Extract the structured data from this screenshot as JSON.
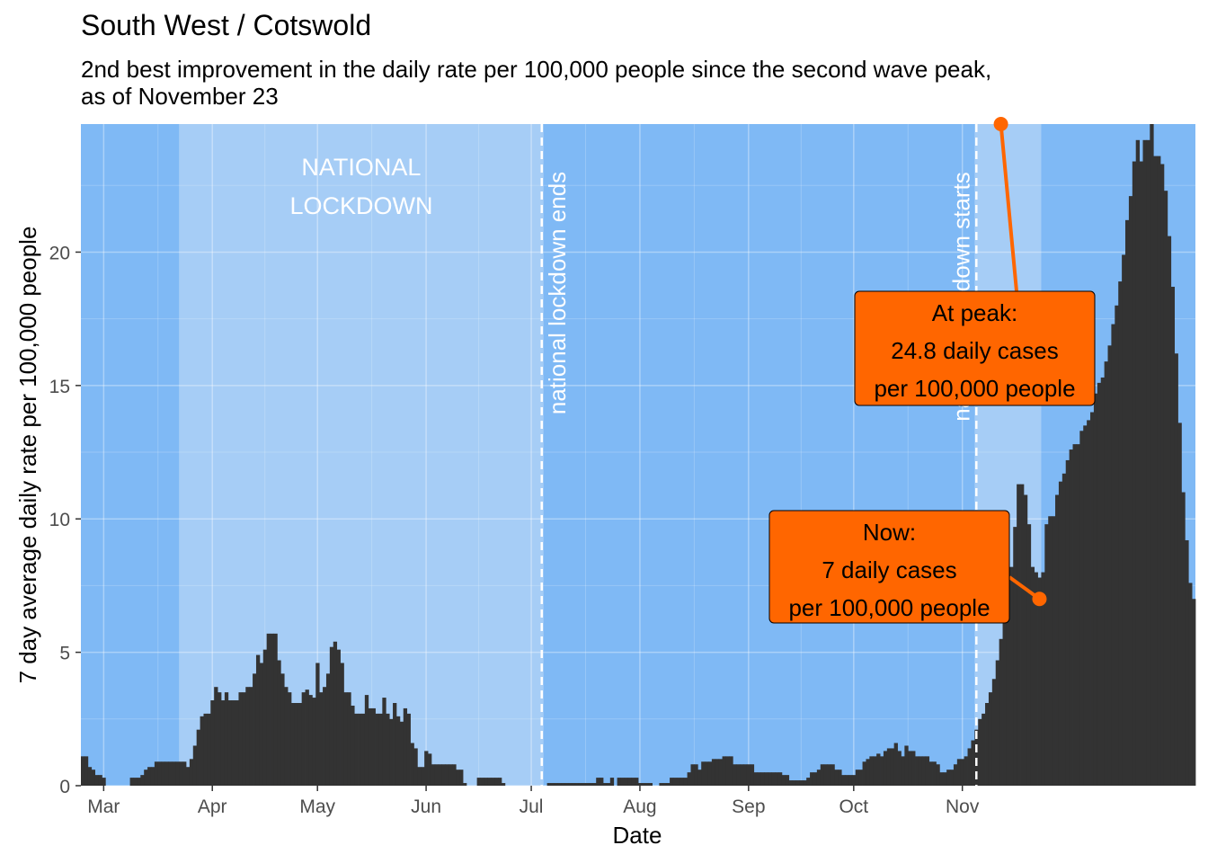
{
  "title": "South West / Cotswold",
  "subtitle_line1": "2nd best improvement in the daily rate per 100,000 people since the second wave peak,",
  "subtitle_line2": "as of November 23",
  "colors": {
    "panel_background": "#7fb9f5",
    "lockdown_shade": "#a6cdf6",
    "bars": "#333333",
    "annotation_fill": "#ff6600",
    "annotation_line": "#ff6600"
  },
  "chart_data": {
    "type": "bar",
    "xlabel": "Date",
    "ylabel": "7 day average daily rate per 100,000 people",
    "x_start_date": "2020-02-24",
    "x_range": [
      "2020-02-24",
      "2020-11-23"
    ],
    "ylim": [
      0,
      24.8
    ],
    "yticks": [
      0,
      5,
      10,
      15,
      20
    ],
    "xticks": [
      {
        "label": "Mar",
        "date": "2020-03-01"
      },
      {
        "label": "Apr",
        "date": "2020-04-01"
      },
      {
        "label": "May",
        "date": "2020-05-01"
      },
      {
        "label": "Jun",
        "date": "2020-06-01"
      },
      {
        "label": "Jul",
        "date": "2020-07-01"
      },
      {
        "label": "Aug",
        "date": "2020-08-01"
      },
      {
        "label": "Sep",
        "date": "2020-09-01"
      },
      {
        "label": "Oct",
        "date": "2020-10-01"
      },
      {
        "label": "Nov",
        "date": "2020-11-01"
      }
    ],
    "grid": true,
    "shaded_regions": [
      {
        "label_line1": "NATIONAL",
        "label_line2": "LOCKDOWN",
        "start": "2020-03-23",
        "end": "2020-07-04"
      },
      {
        "start": "2020-11-05",
        "end": "2020-11-23"
      }
    ],
    "vlines": [
      {
        "label": "national lockdown ends",
        "date": "2020-07-04"
      },
      {
        "label": "national lockdown starts",
        "date": "2020-11-05"
      }
    ],
    "annotations": [
      {
        "line1": "At peak:",
        "line2": "24.8 daily cases",
        "line3": "per 100,000 people",
        "date": "2020-11-12",
        "value": 24.8
      },
      {
        "line1": "Now:",
        "line2": "7 daily cases",
        "line3": "per 100,000 people",
        "date": "2020-11-23",
        "value": 7
      }
    ],
    "values": [
      1.1,
      1.1,
      0.7,
      0.6,
      0.4,
      0.4,
      0.3,
      0,
      0,
      0,
      0,
      0,
      0,
      0,
      0.3,
      0.3,
      0.3,
      0.4,
      0.6,
      0.7,
      0.7,
      0.9,
      0.9,
      0.9,
      0.9,
      0.9,
      0.9,
      0.9,
      0.9,
      0.9,
      0.7,
      1.0,
      1.5,
      2.1,
      2.6,
      2.7,
      2.7,
      3.2,
      3.7,
      3.5,
      3.2,
      3.5,
      3.2,
      3.2,
      3.2,
      3.5,
      3.5,
      3.7,
      3.7,
      4.2,
      4.9,
      4.6,
      5.1,
      5.7,
      5.7,
      5.7,
      4.7,
      4.2,
      3.7,
      3.5,
      3.1,
      3.1,
      3.1,
      3.5,
      3.6,
      3.4,
      3.3,
      4.6,
      3.5,
      3.7,
      4.2,
      5.2,
      5.4,
      5.1,
      4.6,
      3.5,
      3.5,
      3.0,
      2.7,
      2.7,
      2.7,
      3.4,
      2.9,
      2.9,
      2.7,
      2.7,
      3.3,
      2.7,
      2.5,
      3.1,
      2.6,
      2.4,
      2.9,
      2.7,
      1.6,
      1.4,
      0.7,
      0.7,
      1.3,
      1.2,
      0.8,
      0.8,
      0.8,
      0.8,
      0.8,
      0.8,
      0.8,
      0.6,
      0.6,
      0.1,
      0,
      0,
      0,
      0.3,
      0.3,
      0.3,
      0.3,
      0.3,
      0.3,
      0.3,
      0.1,
      0,
      0,
      0,
      0,
      0,
      0,
      0,
      0,
      0,
      0,
      0,
      0,
      0.1,
      0.1,
      0.1,
      0.1,
      0.1,
      0.1,
      0.1,
      0.1,
      0.1,
      0.1,
      0.1,
      0.1,
      0.1,
      0.1,
      0.3,
      0.3,
      0.1,
      0.1,
      0.3,
      0,
      0.3,
      0.3,
      0.3,
      0.3,
      0.3,
      0.3,
      0.1,
      0.1,
      0.1,
      0.1,
      0,
      0,
      0.1,
      0.1,
      0.1,
      0.3,
      0.3,
      0.3,
      0.3,
      0.3,
      0.5,
      0.8,
      0.8,
      0.6,
      0.9,
      0.9,
      0.9,
      1.0,
      1.0,
      1.0,
      1.1,
      1.1,
      1.1,
      0.8,
      0.8,
      0.8,
      0.8,
      0.8,
      0.8,
      0.5,
      0.5,
      0.5,
      0.5,
      0.5,
      0.5,
      0.5,
      0.5,
      0.4,
      0.4,
      0.2,
      0.2,
      0.2,
      0.2,
      0.2,
      0.3,
      0.5,
      0.5,
      0.6,
      0.8,
      0.8,
      0.8,
      0.8,
      0.6,
      0.6,
      0.4,
      0.4,
      0.4,
      0.4,
      0.6,
      0.6,
      0.9,
      1.0,
      1.1,
      1.1,
      1.2,
      1.1,
      1.3,
      1.4,
      1.4,
      1.6,
      1.3,
      1.1,
      1.5,
      1.3,
      1.3,
      1.1,
      1.1,
      1.1,
      1.1,
      0.9,
      0.9,
      0.8,
      0.5,
      0.5,
      0.6,
      0.6,
      0.8,
      1.0,
      1.0,
      1.1,
      1.4,
      1.7,
      2.1,
      2.5,
      2.7,
      3.1,
      3.5,
      4.0,
      4.7,
      5.5,
      6.5,
      7.5,
      8.2,
      9.7,
      11.3,
      11.3,
      10.9,
      9.8,
      8.2,
      8.0,
      7.8,
      8.0,
      9.8,
      10.1,
      10.1,
      10.9,
      11.4,
      11.7,
      12.2,
      12.6,
      12.8,
      12.8,
      13.3,
      13.5,
      13.7,
      14.0,
      14.7,
      15.1,
      15.3,
      15.9,
      16.5,
      17.3,
      18.0,
      18.9,
      19.9,
      21.2,
      22.1,
      23.4,
      24.2,
      23.4,
      24.2,
      24.2,
      24.8,
      23.6,
      23.6,
      23.3,
      22.3,
      20.6,
      18.7,
      16.2,
      13.6,
      11.0,
      9.2,
      7.6,
      7.0
    ]
  }
}
